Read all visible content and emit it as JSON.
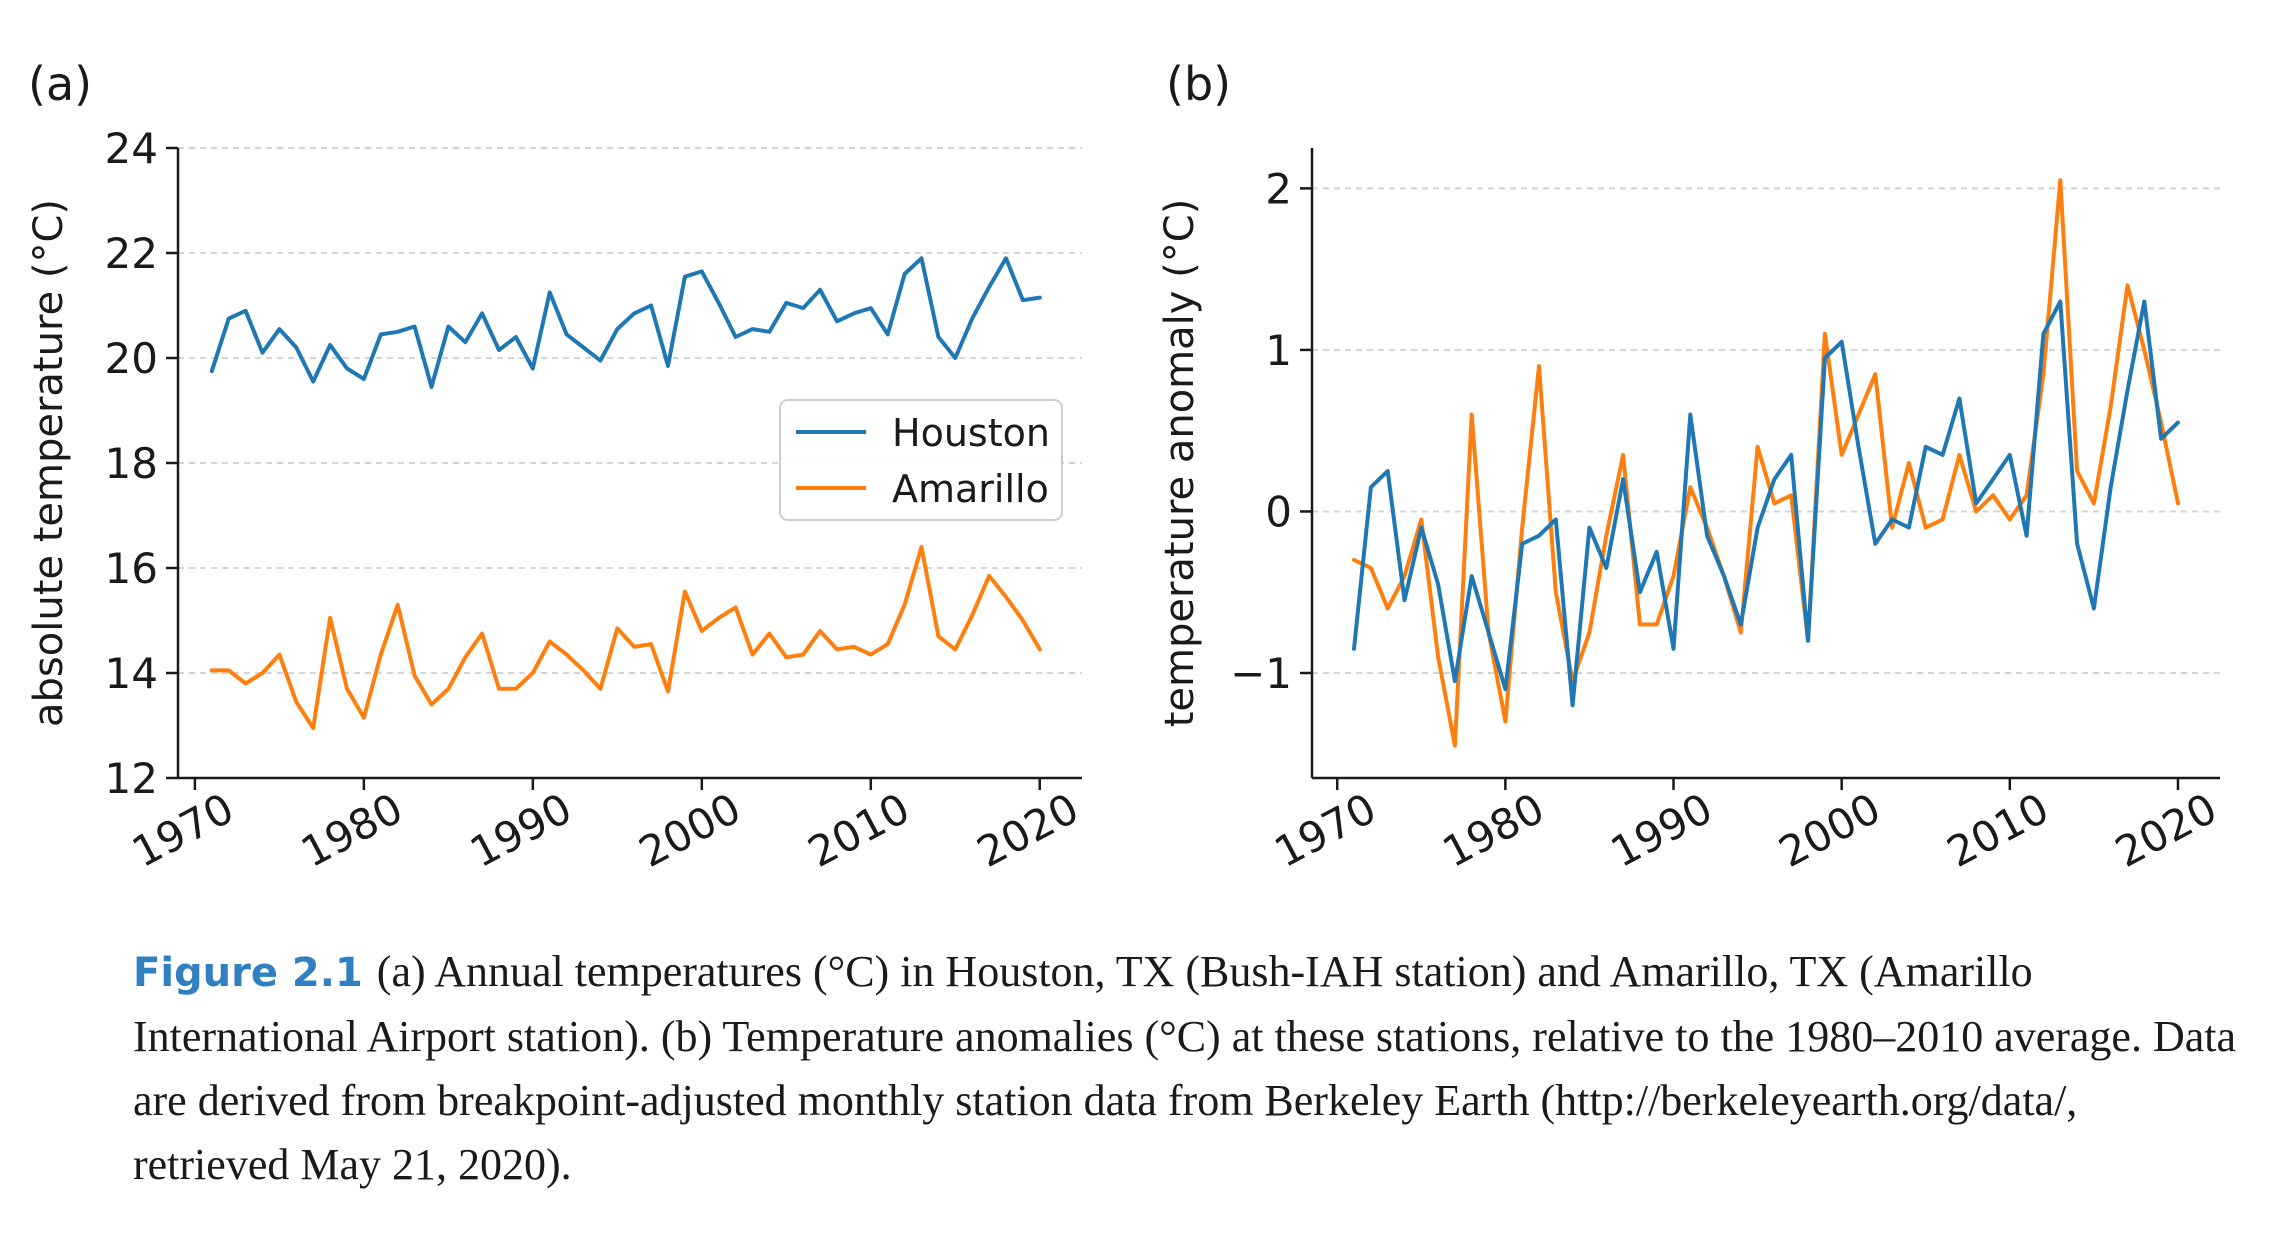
{
  "figure": {
    "label": "Figure 2.1",
    "caption": "(a) Annual temperatures (°C) in Houston, TX (Bush-IAH station) and Amarillo, TX (Amarillo International Airport station). (b) Temperature anomalies (°C) at these stations, relative to the 1980–2010 average. Data are derived from breakpoint-adjusted monthly station data from Berkeley Earth (http://berkeleyearth.org/data/, retrieved May 21, 2020)."
  },
  "colors": {
    "houston": "#1f77b4",
    "amarillo": "#ff7f0e",
    "grid": "#d4d4d4",
    "axis": "#1a1a1a"
  },
  "chart_data": [
    {
      "type": "line",
      "panel_label": "(a)",
      "ylabel": "absolute temperature (°C)",
      "xlabel": "",
      "xlim": [
        1969,
        2022.5
      ],
      "ylim": [
        12,
        24
      ],
      "xticks": [
        1970,
        1980,
        1990,
        2000,
        2010,
        2020
      ],
      "yticks": [
        12,
        14,
        16,
        18,
        20,
        22,
        24
      ],
      "grid": "horizontal",
      "legend": "right",
      "x": [
        1971,
        1972,
        1973,
        1974,
        1975,
        1976,
        1977,
        1978,
        1979,
        1980,
        1981,
        1982,
        1983,
        1984,
        1985,
        1986,
        1987,
        1988,
        1989,
        1990,
        1991,
        1992,
        1993,
        1994,
        1995,
        1996,
        1997,
        1998,
        1999,
        2000,
        2001,
        2002,
        2003,
        2004,
        2005,
        2006,
        2007,
        2008,
        2009,
        2010,
        2011,
        2012,
        2013,
        2014,
        2015,
        2016,
        2017,
        2018,
        2019,
        2020
      ],
      "series": [
        {
          "name": "Houston",
          "color": "#1f77b4",
          "values": [
            19.75,
            20.75,
            20.9,
            20.1,
            20.55,
            20.2,
            19.55,
            20.25,
            19.8,
            19.6,
            20.45,
            20.5,
            20.6,
            19.45,
            20.6,
            20.3,
            20.85,
            20.15,
            20.4,
            19.8,
            21.25,
            20.45,
            20.2,
            19.95,
            20.55,
            20.85,
            21.0,
            19.85,
            21.55,
            21.65,
            21.05,
            20.4,
            20.55,
            20.5,
            21.05,
            20.95,
            21.3,
            20.7,
            20.85,
            20.95,
            20.45,
            21.6,
            21.9,
            20.4,
            20.0,
            20.75,
            21.35,
            21.9,
            21.1,
            21.15
          ]
        },
        {
          "name": "Amarillo",
          "color": "#ff7f0e",
          "values": [
            14.05,
            14.05,
            13.8,
            14.0,
            14.35,
            13.45,
            12.95,
            15.05,
            13.7,
            13.15,
            14.35,
            15.3,
            13.95,
            13.4,
            13.7,
            14.3,
            14.75,
            13.7,
            13.7,
            14.0,
            14.6,
            14.35,
            14.05,
            13.7,
            14.85,
            14.5,
            14.55,
            13.65,
            15.55,
            14.8,
            15.05,
            15.25,
            14.35,
            14.75,
            14.3,
            14.35,
            14.8,
            14.45,
            14.5,
            14.35,
            14.55,
            15.3,
            16.4,
            14.7,
            14.45,
            15.1,
            15.85,
            15.45,
            15.0,
            14.45
          ]
        }
      ]
    },
    {
      "type": "line",
      "panel_label": "(b)",
      "ylabel": "temperature anomaly (°C)",
      "xlabel": "",
      "xlim": [
        1968.5,
        2022.5
      ],
      "ylim": [
        -1.65,
        2.25
      ],
      "xticks": [
        1970,
        1980,
        1990,
        2000,
        2010,
        2020
      ],
      "yticks": [
        -1,
        0,
        1,
        2
      ],
      "grid": "horizontal",
      "x": [
        1971,
        1972,
        1973,
        1974,
        1975,
        1976,
        1977,
        1978,
        1979,
        1980,
        1981,
        1982,
        1983,
        1984,
        1985,
        1986,
        1987,
        1988,
        1989,
        1990,
        1991,
        1992,
        1993,
        1994,
        1995,
        1996,
        1997,
        1998,
        1999,
        2000,
        2001,
        2002,
        2003,
        2004,
        2005,
        2006,
        2007,
        2008,
        2009,
        2010,
        2011,
        2012,
        2013,
        2014,
        2015,
        2016,
        2017,
        2018,
        2019,
        2020
      ],
      "series": [
        {
          "name": "Houston",
          "color": "#1f77b4",
          "values": [
            -0.85,
            0.15,
            0.25,
            -0.55,
            -0.1,
            -0.45,
            -1.05,
            -0.4,
            -0.75,
            -1.1,
            -0.2,
            -0.15,
            -0.05,
            -1.2,
            -0.1,
            -0.35,
            0.2,
            -0.5,
            -0.25,
            -0.85,
            0.6,
            -0.15,
            -0.4,
            -0.7,
            -0.1,
            0.2,
            0.35,
            -0.8,
            0.95,
            1.05,
            0.4,
            -0.2,
            -0.05,
            -0.1,
            0.4,
            0.35,
            0.7,
            0.05,
            0.2,
            0.35,
            -0.15,
            1.1,
            1.3,
            -0.2,
            -0.6,
            0.15,
            0.75,
            1.3,
            0.45,
            0.55
          ]
        },
        {
          "name": "Amarillo",
          "color": "#ff7f0e",
          "values": [
            -0.3,
            -0.35,
            -0.6,
            -0.4,
            -0.05,
            -0.9,
            -1.45,
            0.6,
            -0.75,
            -1.3,
            -0.1,
            0.9,
            -0.5,
            -1.05,
            -0.75,
            -0.15,
            0.35,
            -0.7,
            -0.7,
            -0.4,
            0.15,
            -0.1,
            -0.4,
            -0.75,
            0.4,
            0.05,
            0.1,
            -0.8,
            1.1,
            0.35,
            0.6,
            0.85,
            -0.1,
            0.3,
            -0.1,
            -0.05,
            0.35,
            0.0,
            0.1,
            -0.05,
            0.1,
            0.85,
            2.05,
            0.25,
            0.05,
            0.65,
            1.4,
            1.0,
            0.55,
            0.05
          ]
        }
      ]
    }
  ]
}
